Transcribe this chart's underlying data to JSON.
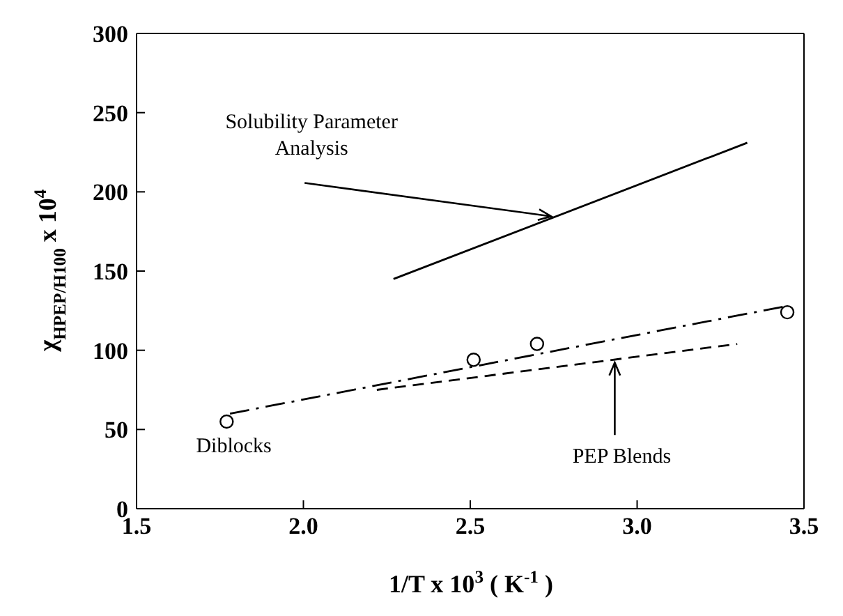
{
  "chart_data": {
    "type": "line",
    "xlabel": "1/T x 10$^{3}$ ( K$^{-1}$ )",
    "ylabel": "χ$_{HPEP/H100}$ x 10$^{4}$",
    "xlim": [
      1.5,
      3.5
    ],
    "xticks": [
      {
        "value": 1.5,
        "label": "1.5"
      },
      {
        "value": 2,
        "label": "2.0"
      },
      {
        "value": 2.5,
        "label": "2.5"
      },
      {
        "value": 3,
        "label": "3.0"
      },
      {
        "value": 3.5,
        "label": "3.5"
      }
    ],
    "ylim": [
      0,
      300
    ],
    "yticks": [
      0,
      50,
      100,
      150,
      200,
      250,
      300
    ],
    "series": [
      {
        "type": "scatter",
        "marker": "circle",
        "color": "#000000",
        "x": [
          1.77,
          2.51,
          2.7,
          3.45
        ],
        "values": [
          55,
          94,
          104,
          124
        ]
      },
      {
        "line_style": "solid",
        "color": "#000000",
        "x": [
          2.27,
          3.33
        ],
        "values": [
          145,
          231
        ]
      },
      {
        "line_style": "dashdot",
        "color": "#000000",
        "x": [
          1.78,
          3.45
        ],
        "values": [
          60,
          128
        ]
      },
      {
        "line_style": "dashed",
        "color": "#000000",
        "x": [
          2.22,
          3.3
        ],
        "values": [
          75,
          104
        ]
      }
    ],
    "annotations": [
      {
        "text": "Solubility Parameter Analysis",
        "x": 2.74,
        "y": 184
      },
      {
        "text": "Diblocks",
        "x": 1.77,
        "y": 55
      },
      {
        "text": "PEP Blends",
        "x": 2.93,
        "y": 92
      }
    ]
  }
}
